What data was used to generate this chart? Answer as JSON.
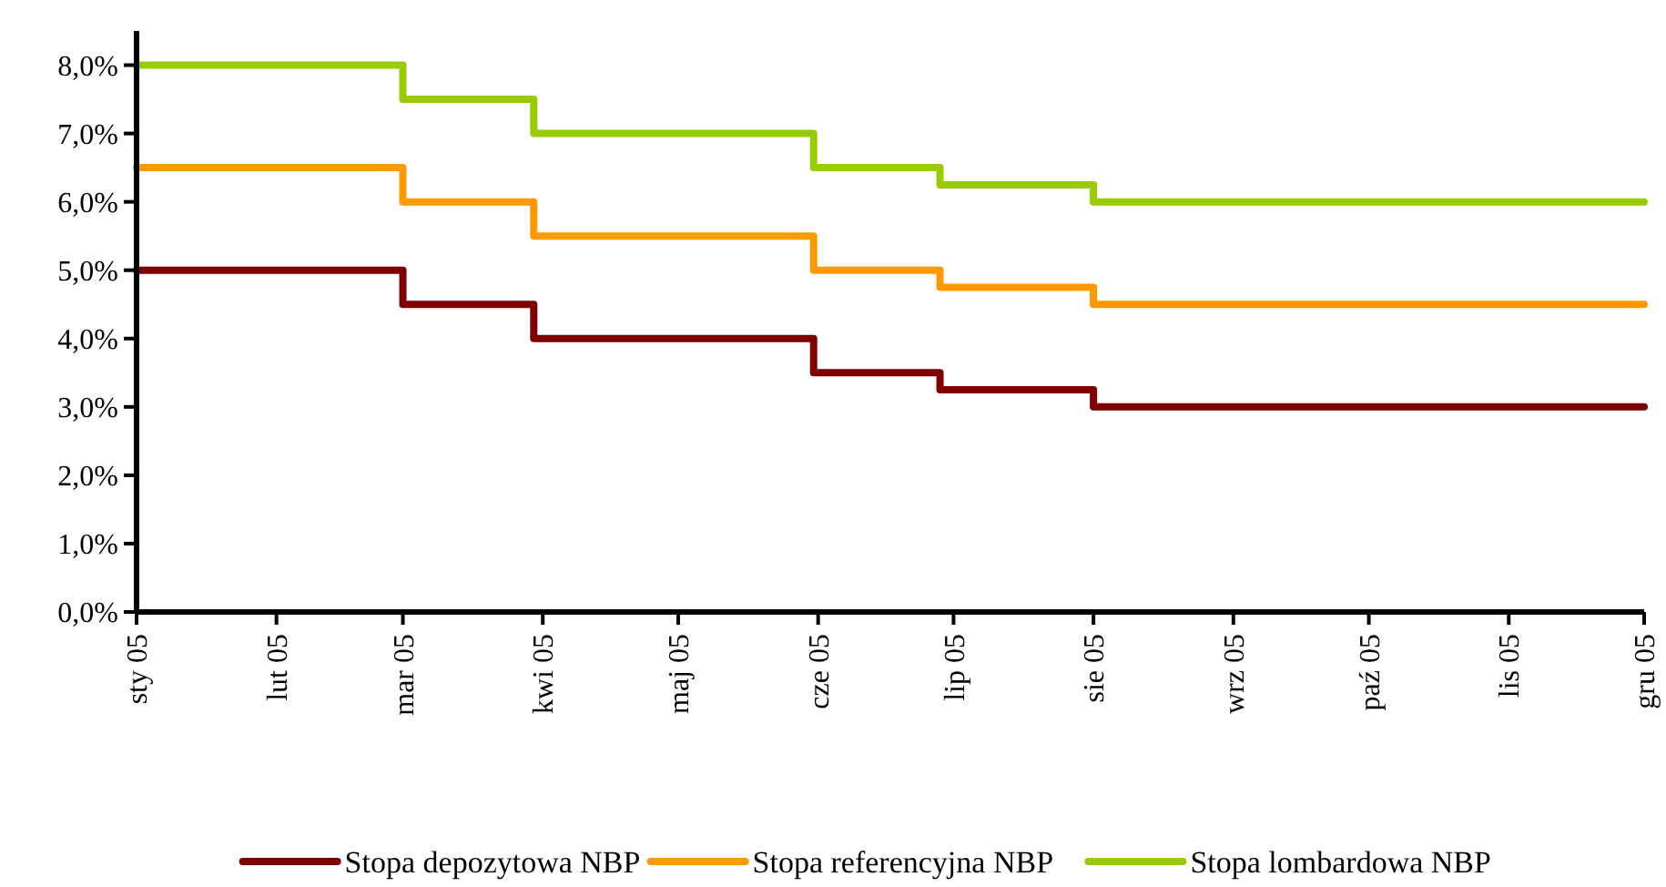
{
  "chart_data": {
    "type": "step",
    "x": [
      "2005-01-01",
      "2005-03-01",
      "2005-03-30",
      "2005-05-31",
      "2005-06-28",
      "2005-08-01",
      "2005-12-01"
    ],
    "series": [
      {
        "name": "Stopa depozytowa NBP",
        "color": "#800000",
        "values": [
          5,
          4.5,
          4,
          3.5,
          3.25,
          3,
          3
        ]
      },
      {
        "name": "Stopa referencyjna NBP",
        "color": "#ff9900",
        "values": [
          6.5,
          6,
          5.5,
          5,
          4.75,
          4.5,
          4.5
        ]
      },
      {
        "name": "Stopa lombardowa NBP",
        "color": "#99cc00",
        "values": [
          8,
          7.5,
          7,
          6.5,
          6.25,
          6,
          6
        ]
      }
    ],
    "xlim": [
      "2005-01-01",
      "2005-12-01"
    ],
    "xticks": [
      {
        "value": "2005-01-01",
        "label": "sty 05"
      },
      {
        "value": "2005-02-01",
        "label": "lut 05"
      },
      {
        "value": "2005-03-01",
        "label": "mar 05"
      },
      {
        "value": "2005-04-01",
        "label": "kwi 05"
      },
      {
        "value": "2005-05-01",
        "label": "maj 05"
      },
      {
        "value": "2005-06-01",
        "label": "cze 05"
      },
      {
        "value": "2005-07-01",
        "label": "lip 05"
      },
      {
        "value": "2005-08-01",
        "label": "sie 05"
      },
      {
        "value": "2005-09-01",
        "label": "wrz 05"
      },
      {
        "value": "2005-10-01",
        "label": "paź 05"
      },
      {
        "value": "2005-11-01",
        "label": "lis 05"
      },
      {
        "value": "2005-12-01",
        "label": "gru 05"
      }
    ],
    "ylim": [
      0,
      8.5
    ],
    "yticks": [
      {
        "value": 0,
        "label": "0,0%"
      },
      {
        "value": 1,
        "label": "1,0%"
      },
      {
        "value": 2,
        "label": "2,0%"
      },
      {
        "value": 3,
        "label": "3,0%"
      },
      {
        "value": 4,
        "label": "4,0%"
      },
      {
        "value": 5,
        "label": "5,0%"
      },
      {
        "value": 6,
        "label": "6,0%"
      },
      {
        "value": 7,
        "label": "7,0%"
      },
      {
        "value": 8,
        "label": "8,0%"
      }
    ],
    "grid": false,
    "legend": "bottom",
    "line_style": "solid"
  }
}
